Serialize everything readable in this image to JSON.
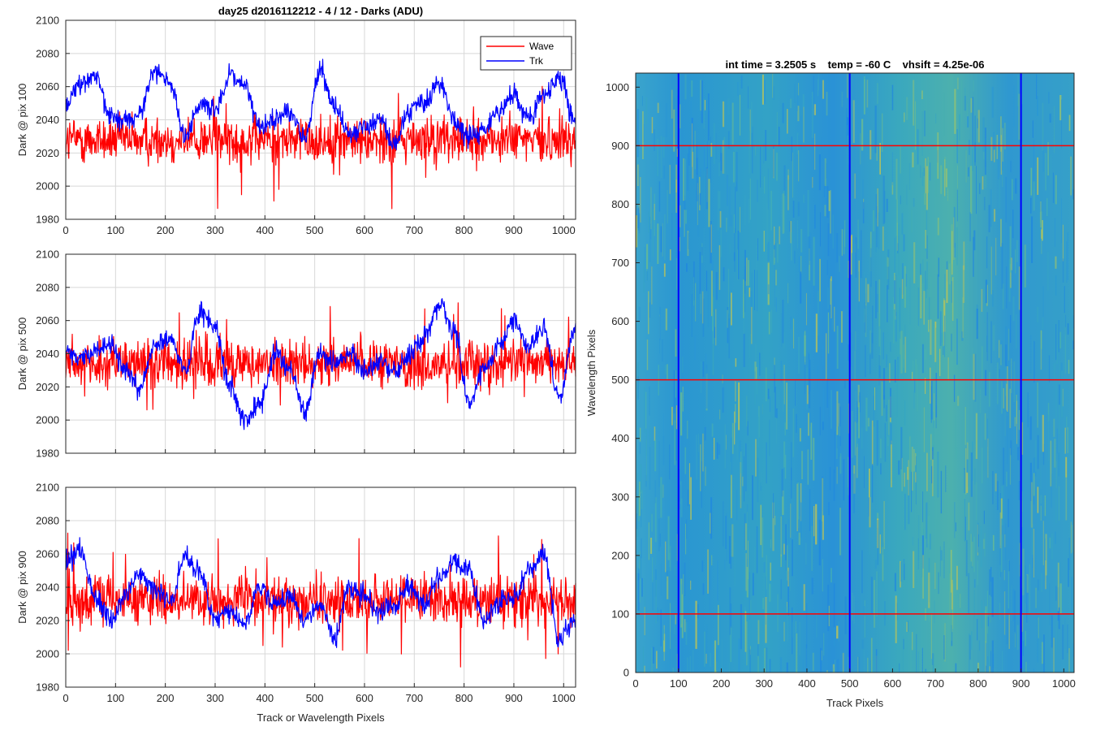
{
  "figure": {
    "title": "day25 d2016112212 - 4 / 12 - Darks (ADU)",
    "legend": {
      "placement": "top-right",
      "entries": [
        "Wave",
        "Trk"
      ]
    },
    "colors": {
      "wave": "#ff0000",
      "trk": "#0000ff",
      "grid": "#d8d8d8"
    }
  },
  "chart_data": [
    {
      "type": "line",
      "ylabel": "Dark @ pix 100",
      "xlim": [
        0,
        1024
      ],
      "ylim": [
        1980,
        2100
      ],
      "x_ticks": [
        0,
        100,
        200,
        300,
        400,
        500,
        600,
        700,
        800,
        900,
        1000
      ],
      "y_ticks": [
        1980,
        2000,
        2020,
        2040,
        2060,
        2080,
        2100
      ],
      "grid": true,
      "series": [
        {
          "name": "Wave",
          "color": "#ff0000",
          "mean": 2028,
          "noise": 13,
          "sampled": true
        },
        {
          "name": "Trk",
          "color": "#0000ff",
          "x": [
            0,
            30,
            60,
            90,
            120,
            150,
            180,
            210,
            240,
            270,
            300,
            330,
            360,
            390,
            420,
            450,
            480,
            510,
            540,
            570,
            600,
            630,
            660,
            690,
            720,
            750,
            780,
            810,
            840,
            870,
            900,
            930,
            960,
            990,
            1024
          ],
          "y": [
            2050,
            2062,
            2066,
            2042,
            2040,
            2045,
            2070,
            2062,
            2030,
            2050,
            2045,
            2068,
            2060,
            2035,
            2040,
            2045,
            2028,
            2070,
            2050,
            2030,
            2035,
            2040,
            2025,
            2045,
            2050,
            2062,
            2040,
            2030,
            2035,
            2045,
            2055,
            2040,
            2055,
            2065,
            2040
          ]
        }
      ]
    },
    {
      "type": "line",
      "ylabel": "Dark @ pix 500",
      "xlim": [
        0,
        1024
      ],
      "ylim": [
        1980,
        2100
      ],
      "x_ticks": [
        0,
        100,
        200,
        300,
        400,
        500,
        600,
        700,
        800,
        900,
        1000
      ],
      "y_ticks": [
        1980,
        2000,
        2020,
        2040,
        2060,
        2080,
        2100
      ],
      "grid": true,
      "series": [
        {
          "name": "Wave",
          "color": "#ff0000",
          "mean": 2034,
          "noise": 13,
          "sampled": true
        },
        {
          "name": "Trk",
          "color": "#0000ff",
          "x": [
            0,
            30,
            60,
            90,
            120,
            150,
            180,
            210,
            240,
            270,
            300,
            330,
            360,
            390,
            420,
            450,
            480,
            510,
            540,
            570,
            600,
            630,
            660,
            690,
            720,
            750,
            780,
            810,
            840,
            870,
            900,
            930,
            960,
            990,
            1024
          ],
          "y": [
            2040,
            2038,
            2040,
            2045,
            2030,
            2020,
            2045,
            2050,
            2030,
            2065,
            2055,
            2020,
            2000,
            2010,
            2040,
            2030,
            2005,
            2040,
            2035,
            2040,
            2030,
            2035,
            2030,
            2040,
            2050,
            2070,
            2055,
            2010,
            2030,
            2045,
            2060,
            2045,
            2055,
            2015,
            2055
          ]
        }
      ]
    },
    {
      "type": "line",
      "ylabel": "Dark @ pix 900",
      "xlabel": "Track or Wavelength Pixels",
      "xlim": [
        0,
        1024
      ],
      "ylim": [
        1980,
        2100
      ],
      "x_ticks": [
        0,
        100,
        200,
        300,
        400,
        500,
        600,
        700,
        800,
        900,
        1000
      ],
      "y_ticks": [
        1980,
        2000,
        2020,
        2040,
        2060,
        2080,
        2100
      ],
      "grid": true,
      "series": [
        {
          "name": "Wave",
          "color": "#ff0000",
          "mean": 2032,
          "noise": 14,
          "sampled": true
        },
        {
          "name": "Trk",
          "color": "#0000ff",
          "x": [
            0,
            30,
            60,
            90,
            120,
            150,
            180,
            210,
            240,
            270,
            300,
            330,
            360,
            390,
            420,
            450,
            480,
            510,
            540,
            570,
            600,
            630,
            660,
            690,
            720,
            750,
            780,
            810,
            840,
            870,
            900,
            930,
            960,
            990,
            1024
          ],
          "y": [
            2055,
            2062,
            2035,
            2020,
            2035,
            2048,
            2040,
            2030,
            2058,
            2050,
            2020,
            2025,
            2018,
            2040,
            2030,
            2035,
            2020,
            2030,
            2010,
            2040,
            2035,
            2025,
            2028,
            2040,
            2030,
            2045,
            2055,
            2050,
            2020,
            2030,
            2035,
            2050,
            2060,
            2010,
            2020
          ]
        }
      ]
    },
    {
      "type": "heatmap",
      "title": "int time = 3.2505 s    temp = -60 C    vhsift = 4.25e-06",
      "xlabel": "Track Pixels",
      "ylabel": "Wavelength Pixels",
      "xlim": [
        0,
        1024
      ],
      "ylim": [
        0,
        1024
      ],
      "x_ticks": [
        0,
        100,
        200,
        300,
        400,
        500,
        600,
        700,
        800,
        900,
        1000
      ],
      "y_ticks": [
        0,
        100,
        200,
        300,
        400,
        500,
        600,
        700,
        800,
        900,
        1000
      ],
      "colormap": "parula",
      "value_range": "dark counts",
      "vertical_markers": {
        "positions": [
          100,
          500,
          900
        ],
        "color": "#0000ff"
      },
      "horizontal_markers": {
        "positions": [
          100,
          500,
          900
        ],
        "color": "#ff0000"
      }
    }
  ]
}
